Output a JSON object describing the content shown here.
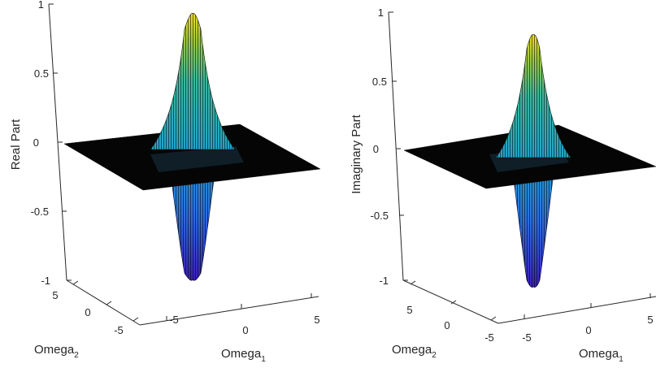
{
  "chart_data": [
    {
      "type": "surface",
      "zlabel": "Real Part",
      "xlabel": {
        "base": "Omega",
        "sub": "1"
      },
      "ylabel": {
        "base": "Omega",
        "sub": "2"
      },
      "xlim": [
        -8,
        8
      ],
      "ylim": [
        -8,
        8
      ],
      "zlim": [
        -1,
        1
      ],
      "xticks": [
        "-5",
        "0",
        "5"
      ],
      "yticks": [
        "5",
        "0",
        "-5"
      ],
      "zticks": [
        "1",
        "0.5",
        "0",
        "-0.5",
        "-1"
      ],
      "grid": false,
      "colormap": "parula",
      "peak": 0.95,
      "trough": -0.98,
      "series": [
        {
          "values": [
            [
              -8,
              0
            ],
            [
              -2,
              0
            ],
            [
              -1.5,
              -0.2
            ],
            [
              -1,
              -0.65
            ],
            [
              -0.5,
              -0.98
            ],
            [
              0,
              0
            ],
            [
              0.5,
              0.95
            ],
            [
              1,
              0.62
            ],
            [
              1.5,
              0.2
            ],
            [
              2,
              0
            ],
            [
              8,
              0
            ]
          ]
        }
      ]
    },
    {
      "type": "surface",
      "zlabel": "Imaginary Part",
      "xlabel": {
        "base": "Omega",
        "sub": "1"
      },
      "ylabel": {
        "base": "Omega",
        "sub": "2"
      },
      "xlim": [
        -8,
        8
      ],
      "ylim": [
        -8,
        8
      ],
      "zlim": [
        -1,
        1
      ],
      "xticks": [
        "-5",
        "0",
        "5"
      ],
      "yticks": [
        "5",
        "0",
        "-5"
      ],
      "zticks": [
        "1",
        "0.5",
        "0",
        "-0.5",
        "-1"
      ],
      "grid": false,
      "colormap": "parula",
      "peak": 0.88,
      "trough": -1.0,
      "series": [
        {
          "values": [
            [
              -8,
              0
            ],
            [
              -2,
              0
            ],
            [
              -1.5,
              -0.2
            ],
            [
              -1,
              -0.68
            ],
            [
              -0.5,
              -1.0
            ],
            [
              0,
              0
            ],
            [
              0.5,
              0.88
            ],
            [
              1,
              0.55
            ],
            [
              1.5,
              0.18
            ],
            [
              2,
              0
            ],
            [
              8,
              0
            ]
          ]
        }
      ]
    }
  ]
}
